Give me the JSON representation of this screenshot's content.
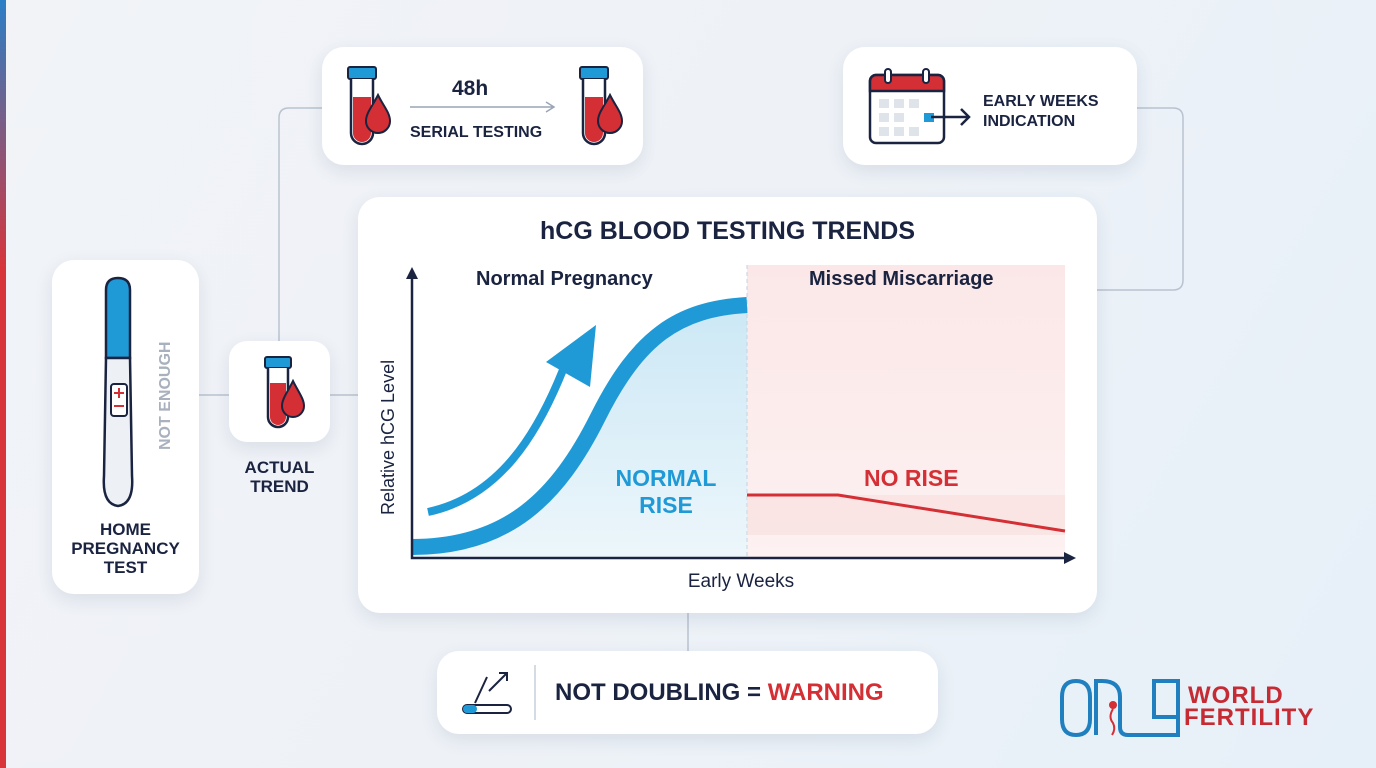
{
  "serial_testing": {
    "interval": "48h",
    "label": "SERIAL TESTING",
    "icon": "blood-tube-icon"
  },
  "early_weeks": {
    "label_line1": "EARLY WEEKS",
    "label_line2": "INDICATION",
    "icon": "calendar-icon"
  },
  "home_test": {
    "label_line1": "HOME",
    "label_line2": "PREGNANCY",
    "label_line3": "TEST",
    "side_note": "NOT ENOUGH",
    "icon": "pregnancy-test-icon"
  },
  "actual_trend": {
    "label_line1": "ACTUAL",
    "label_line2": "TREND",
    "icon": "blood-tube-icon"
  },
  "chart": {
    "title": "hCG BLOOD TESTING TRENDS",
    "left_panel": "Normal Pregnancy",
    "right_panel": "Missed Miscarriage",
    "ylabel": "Relative hCG Level",
    "xlabel": "Early Weeks",
    "normal_label_line1": "NORMAL",
    "normal_label_line2": "RISE",
    "miscarriage_label": "NO RISE"
  },
  "warning": {
    "text": "NOT DOUBLING =",
    "highlight": "WARNING",
    "icon": "test-trend-icon"
  },
  "logo": {
    "mark": "ONE",
    "line1": "WORLD",
    "line2": "FERTILITY"
  },
  "colors": {
    "blue": "#1f9ad6",
    "red": "#d32f35",
    "navy": "#1a2340"
  }
}
